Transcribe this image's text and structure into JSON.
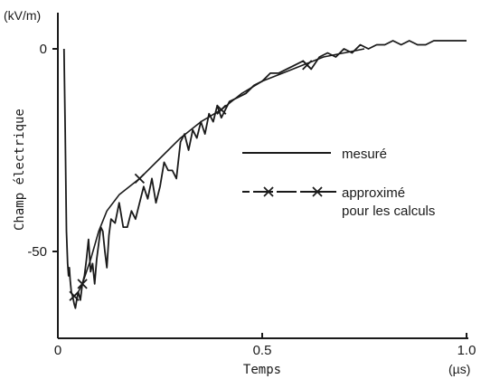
{
  "chart_data": {
    "type": "line",
    "xlabel": "Temps",
    "ylabel": "Champ électrique",
    "x_unit": "(µs)",
    "y_unit": "(kV/m)",
    "xlim": [
      0,
      1.0
    ],
    "ylim": [
      -72,
      3
    ],
    "x_ticks": [
      0,
      0.5,
      1.0
    ],
    "x_tick_labels": [
      "0",
      "0.5",
      "1.0"
    ],
    "y_ticks": [
      0,
      -50
    ],
    "y_tick_labels": [
      "0",
      "-50"
    ],
    "grid": false,
    "legend": {
      "placement": "center-right"
    },
    "series": [
      {
        "name": "mesuré",
        "style": "solid",
        "color": "#1a1a1a",
        "x": [
          0.015,
          0.018,
          0.021,
          0.024,
          0.026,
          0.028,
          0.03,
          0.033,
          0.036,
          0.04,
          0.043,
          0.046,
          0.05,
          0.055,
          0.06,
          0.065,
          0.07,
          0.075,
          0.08,
          0.085,
          0.09,
          0.095,
          0.1,
          0.105,
          0.11,
          0.115,
          0.12,
          0.125,
          0.13,
          0.14,
          0.15,
          0.16,
          0.17,
          0.18,
          0.19,
          0.2,
          0.21,
          0.22,
          0.23,
          0.24,
          0.25,
          0.26,
          0.27,
          0.28,
          0.29,
          0.3,
          0.31,
          0.32,
          0.33,
          0.34,
          0.35,
          0.36,
          0.37,
          0.38,
          0.39,
          0.4,
          0.42,
          0.44,
          0.46,
          0.48,
          0.5,
          0.52,
          0.54,
          0.56,
          0.58,
          0.6,
          0.62,
          0.64,
          0.66,
          0.68,
          0.7,
          0.72,
          0.74,
          0.76,
          0.78,
          0.8,
          0.82,
          0.84,
          0.86,
          0.88,
          0.9,
          0.92,
          0.94,
          0.96,
          0.98,
          1.0
        ],
        "y": [
          0,
          -20,
          -45,
          -53,
          -56,
          -54,
          -57,
          -60,
          -61,
          -63,
          -64,
          -62,
          -60,
          -62,
          -58,
          -56,
          -52,
          -47,
          -55,
          -53,
          -58,
          -52,
          -48,
          -44,
          -45,
          -50,
          -54,
          -46,
          -42,
          -43,
          -38,
          -44,
          -44,
          -40,
          -42,
          -38,
          -34,
          -37,
          -32,
          -38,
          -34,
          -28,
          -30,
          -30,
          -32,
          -23,
          -21,
          -25,
          -20,
          -22,
          -18,
          -21,
          -16,
          -18,
          -14,
          -17,
          -13,
          -12,
          -11,
          -9,
          -8,
          -6,
          -6,
          -5,
          -4,
          -3,
          -5,
          -2,
          -1,
          -2,
          0,
          -1,
          1,
          0,
          1,
          1,
          2,
          1,
          2,
          1,
          1,
          2,
          2,
          2,
          2,
          2
        ]
      },
      {
        "name": "approximé pour les calculs",
        "style": "solid-with-x-markers",
        "color": "#1a1a1a",
        "x": [
          0.04,
          0.05,
          0.06,
          0.08,
          0.1,
          0.12,
          0.15,
          0.2,
          0.25,
          0.3,
          0.35,
          0.4,
          0.45,
          0.5,
          0.55,
          0.6,
          0.65,
          0.7,
          0.75
        ],
        "y": [
          -61,
          -60,
          -58,
          -52,
          -45,
          -40,
          -36,
          -32,
          -27,
          -22,
          -18,
          -15,
          -11,
          -8,
          -6,
          -4,
          -2,
          -1,
          0
        ],
        "marker_x": [
          0.04,
          0.06,
          0.2,
          0.4,
          0.61
        ],
        "marker_y": [
          -61,
          -58,
          -32,
          -15,
          -4
        ]
      }
    ]
  }
}
